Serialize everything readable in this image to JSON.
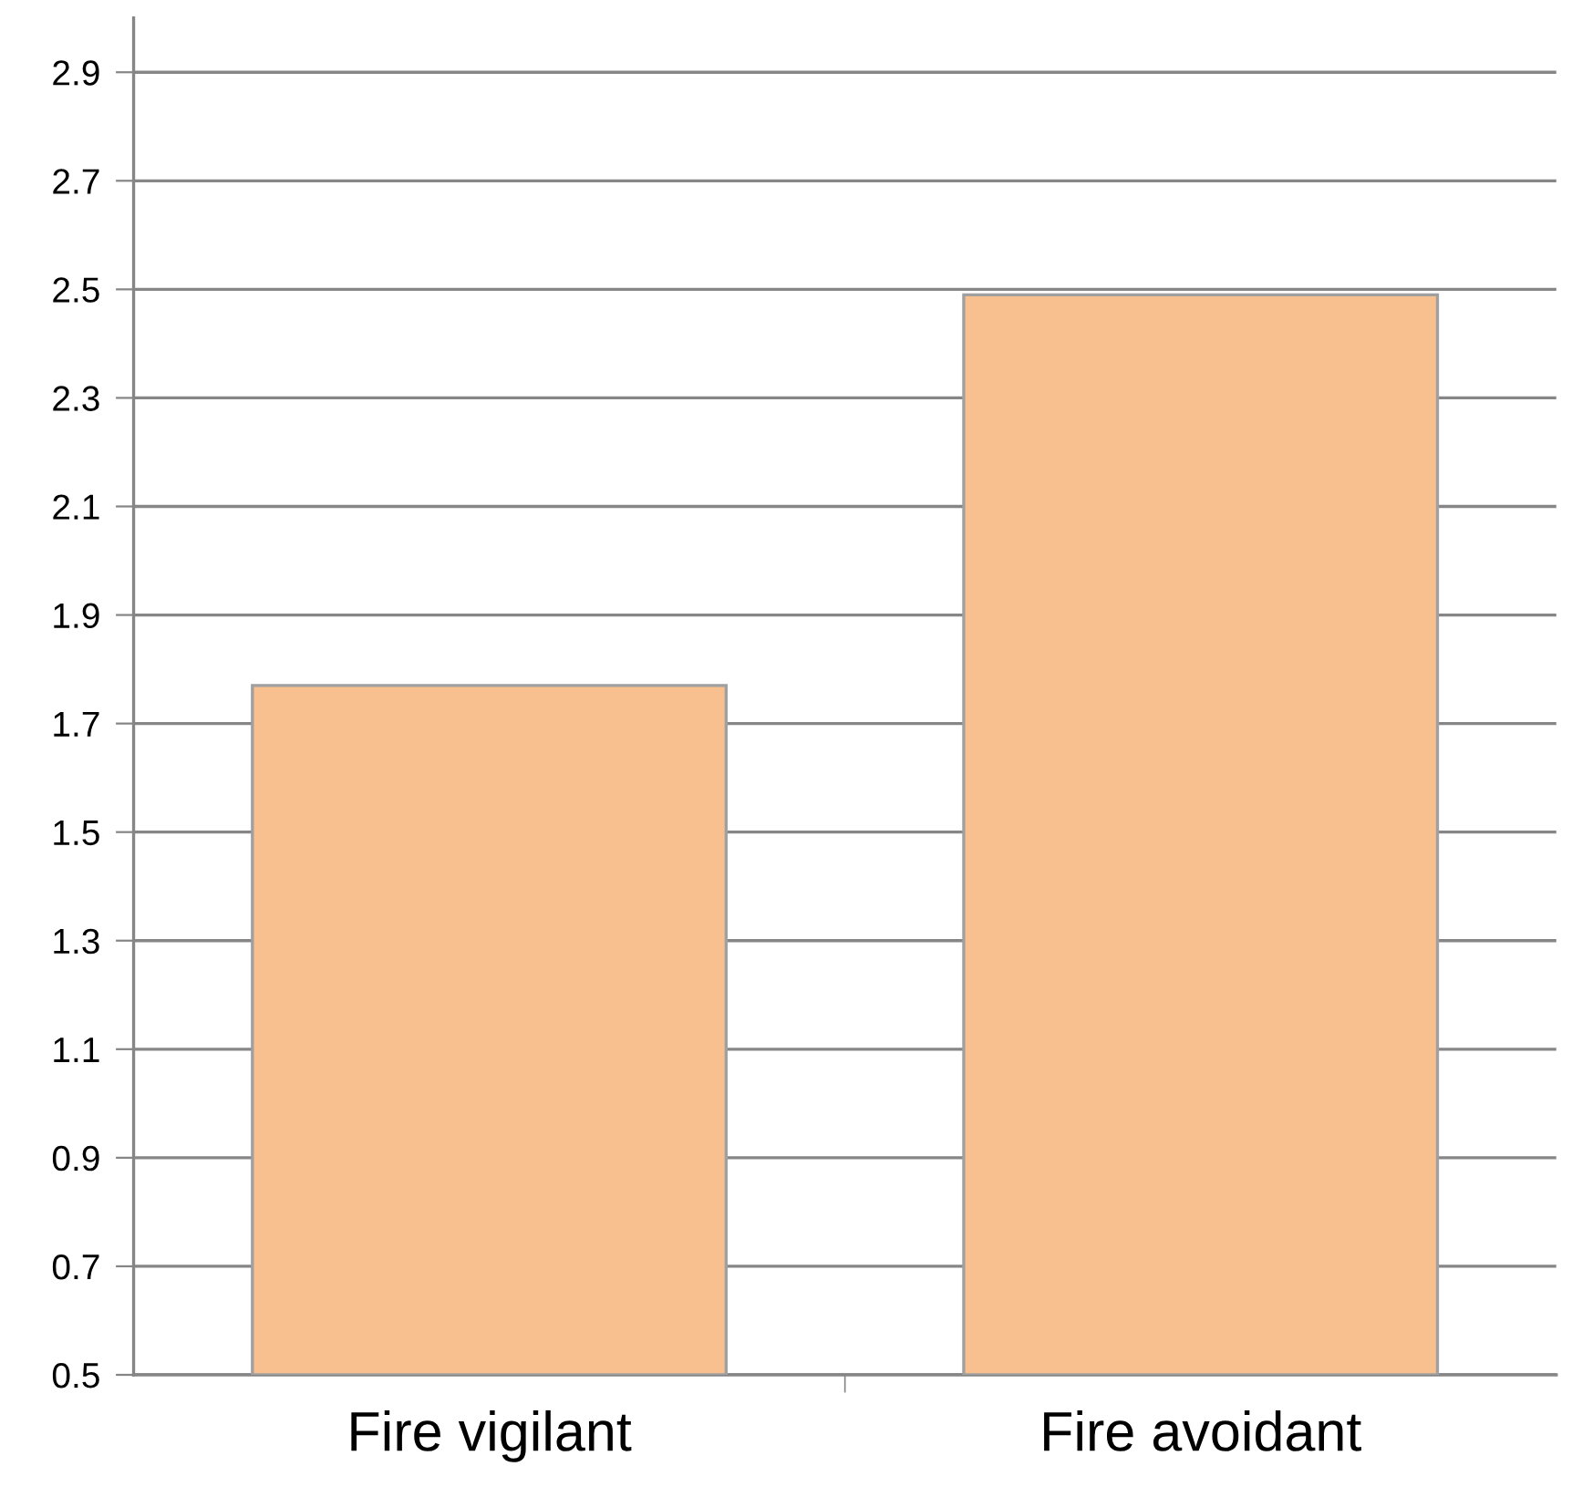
{
  "chart_data": {
    "type": "bar",
    "categories": [
      "Fire vigilant",
      "Fire avoidant"
    ],
    "values": [
      1.77,
      2.49
    ],
    "color": "#f8bf8f",
    "ylim": [
      0.5,
      3.0
    ],
    "yticks": [
      0.5,
      0.7,
      0.9,
      1.1,
      1.3,
      1.5,
      1.7,
      1.9,
      2.1,
      2.3,
      2.5,
      2.7,
      2.9
    ],
    "grid": "y"
  }
}
